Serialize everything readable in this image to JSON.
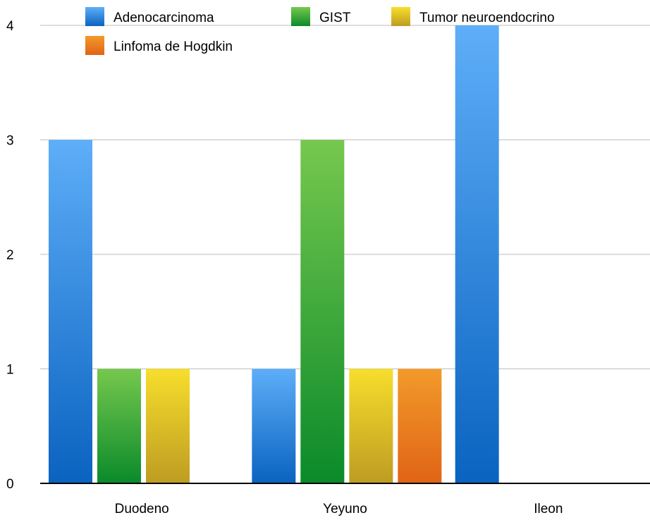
{
  "chart_data": {
    "type": "bar",
    "title": "",
    "xlabel": "",
    "ylabel": "",
    "ylim": [
      0,
      4
    ],
    "yticks": [
      0,
      1,
      2,
      3,
      4
    ],
    "grid": true,
    "legend_position": "top",
    "categories": [
      "Duodeno",
      "Yeyuno",
      "Ileon"
    ],
    "series": [
      {
        "name": "Adenocarcinoma",
        "values": [
          3,
          1,
          4
        ],
        "color_top": "#5EAEF8",
        "color_bottom": "#0A63C0"
      },
      {
        "name": "GIST",
        "values": [
          1,
          3,
          0
        ],
        "color_top": "#76C84E",
        "color_bottom": "#0A8A2A"
      },
      {
        "name": "Tumor neuroendocrino",
        "values": [
          1,
          1,
          0
        ],
        "color_top": "#F7DE2C",
        "color_bottom": "#BE9C22"
      },
      {
        "name": "Linfoma de Hogdkin",
        "values": [
          0,
          1,
          0
        ],
        "color_top": "#F29A2A",
        "color_bottom": "#E06416"
      }
    ]
  }
}
